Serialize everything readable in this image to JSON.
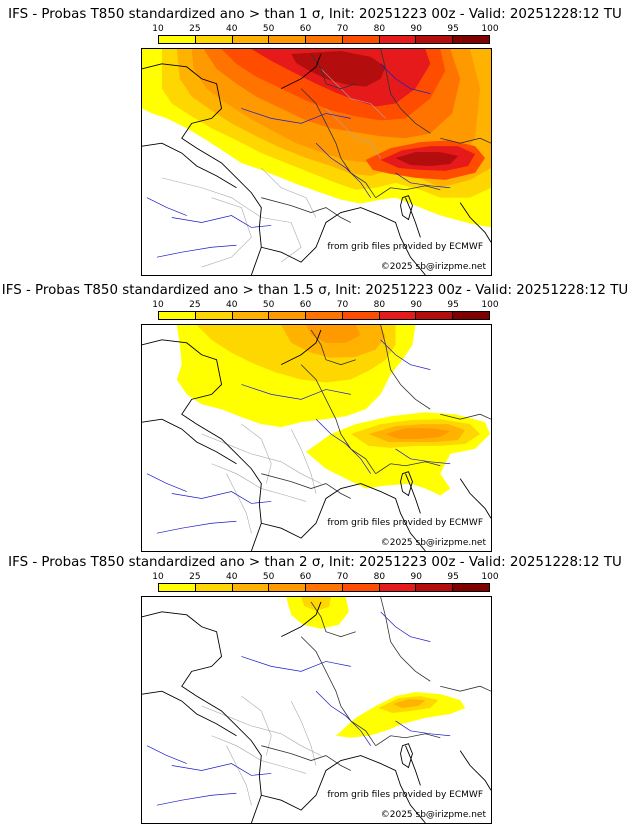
{
  "colorbar": {
    "ticks": [
      "10",
      "25",
      "40",
      "50",
      "60",
      "70",
      "80",
      "90",
      "95",
      "100"
    ],
    "colors": [
      "#ffff00",
      "#ffd700",
      "#ffb300",
      "#ff9900",
      "#ff7300",
      "#ff4d00",
      "#e61a1a",
      "#b40d0d",
      "#800000"
    ]
  },
  "palette": {
    "land": "#ffffff",
    "coast": "#000000",
    "border": "#333333",
    "admin": "#aaaaaa",
    "river": "#1a1acc"
  },
  "panels": [
    {
      "title": "IFS - Probas T850  standardized ano > than 1 σ, Init: 20251223 00z - Valid: 20251228:12 TU",
      "threshold_sigma": "1",
      "credit_source": "from grib files provided by ECMWF",
      "credit_copy": "©2025 sb@irizpme.net"
    },
    {
      "title": "IFS - Probas T850  standardized ano > than 1.5 σ, Init: 20251223 00z - Valid: 20251228:12 TU",
      "threshold_sigma": "1.5",
      "credit_source": "from grib files provided by ECMWF",
      "credit_copy": "©2025 sb@irizpme.net"
    },
    {
      "title": "IFS - Probas T850  standardized ano > than 2 σ, Init: 20251223 00z - Valid: 20251228:12 TU",
      "threshold_sigma": "2",
      "credit_source": "from grib files provided by ECMWF",
      "credit_copy": "©2025 sb@irizpme.net"
    }
  ]
}
